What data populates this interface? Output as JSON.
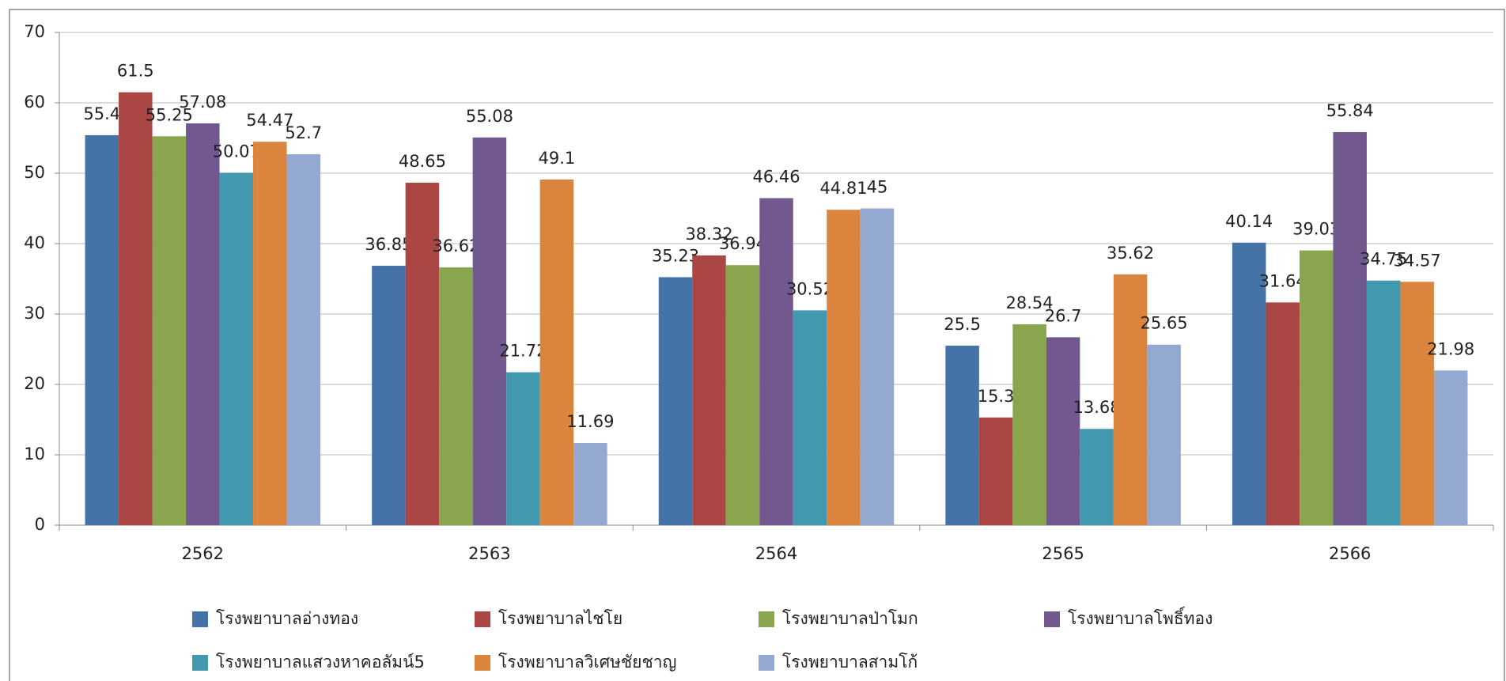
{
  "chart_data": {
    "type": "bar",
    "categories": [
      "2562",
      "2563",
      "2564",
      "2565",
      "2566"
    ],
    "series": [
      {
        "name": "โรงพยาบาลอ่างทอง",
        "color": "#4572a7",
        "values": [
          55.4,
          36.85,
          35.23,
          25.5,
          40.14
        ]
      },
      {
        "name": "โรงพยาบาลไชโย",
        "color": "#aa4643",
        "values": [
          61.5,
          48.65,
          38.32,
          15.3,
          31.64
        ]
      },
      {
        "name": "โรงพยาบาลป่าโมก",
        "color": "#89a54e",
        "values": [
          55.25,
          36.62,
          36.94,
          28.54,
          39.03
        ]
      },
      {
        "name": "โรงพยาบาลโพธิ์ทอง",
        "color": "#71588f",
        "values": [
          57.08,
          55.08,
          46.46,
          26.7,
          55.84
        ]
      },
      {
        "name": "โรงพยาบาลแสวงหาคอลัมน์5",
        "color": "#4198af",
        "values": [
          50.07,
          21.72,
          30.52,
          13.68,
          34.75
        ]
      },
      {
        "name": "โรงพยาบาลวิเศษชัยชาญ",
        "color": "#db843d",
        "values": [
          54.47,
          49.1,
          44.81,
          35.62,
          34.57
        ]
      },
      {
        "name": "โรงพยาบาลสามโก้",
        "color": "#93a9cf",
        "values": [
          52.7,
          11.69,
          45,
          25.65,
          21.98
        ]
      }
    ],
    "ylim": [
      0,
      70
    ],
    "yticks": [
      0,
      10,
      20,
      30,
      40,
      50,
      60,
      70
    ],
    "grid": true,
    "legend": "bottom"
  }
}
